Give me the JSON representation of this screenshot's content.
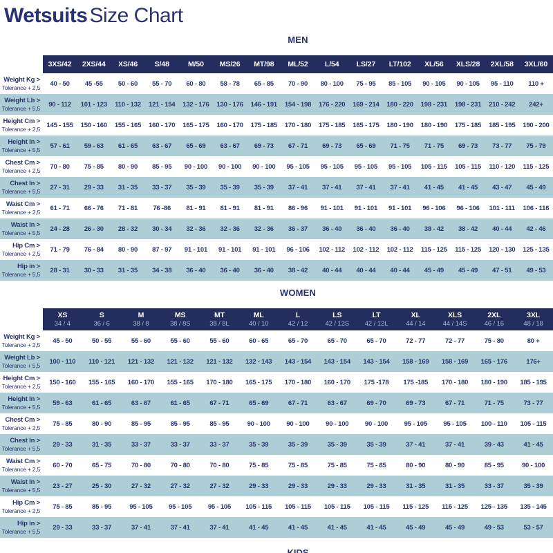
{
  "title": {
    "bold": "Wetsuits",
    "regular": "Size Chart"
  },
  "colors": {
    "navy": "#2b3274",
    "header_bar": "#232e5e",
    "cell_text": "#2a356b",
    "row_alt": "#adced6",
    "women_sub_text": "#a9b8d8"
  },
  "footer_heading": "KIDS",
  "sections": [
    {
      "id": "men",
      "heading": "MEN",
      "columns": [
        {
          "label": "3XS/42"
        },
        {
          "label": "2XS/44"
        },
        {
          "label": "XS/46"
        },
        {
          "label": "S/48"
        },
        {
          "label": "M/50"
        },
        {
          "label": "MS/26"
        },
        {
          "label": "MT/98"
        },
        {
          "label": "ML/52"
        },
        {
          "label": "L/54"
        },
        {
          "label": "LS/27"
        },
        {
          "label": "LT/102"
        },
        {
          "label": "XL/56"
        },
        {
          "label": "XLS/28"
        },
        {
          "label": "2XL/58"
        },
        {
          "label": "3XL/60"
        }
      ],
      "rows": [
        {
          "label": "Weight Kg >",
          "tolerance": "Tolerance + 2,5",
          "values": [
            "40 - 50",
            "45 -55",
            "50 - 60",
            "55 - 70",
            "60 - 80",
            "58 - 78",
            "65 - 85",
            "70 - 90",
            "80 - 100",
            "75 - 95",
            "85 - 105",
            "90 - 105",
            "90 - 105",
            "95 - 110",
            "110 +"
          ]
        },
        {
          "label": "Weight Lb >",
          "tolerance": "Tolerance + 5,5",
          "values": [
            "90 - 112",
            "101 - 123",
            "110 - 132",
            "121 - 154",
            "132 - 176",
            "130 - 176",
            "146 - 191",
            "154 - 198",
            "176 - 220",
            "169 - 214",
            "180 - 220",
            "198 - 231",
            "198 - 231",
            "210 - 242",
            "242+"
          ]
        },
        {
          "label": "Height Cm >",
          "tolerance": "Tolerance + 2,5",
          "values": [
            "145 - 155",
            "150 - 160",
            "155 - 165",
            "160 - 170",
            "165 - 175",
            "160 - 170",
            "175 - 185",
            "170 - 180",
            "175 - 185",
            "165 - 175",
            "180 - 190",
            "180 - 190",
            "175 - 185",
            "185 - 195",
            "190 - 200"
          ]
        },
        {
          "label": "Height In >",
          "tolerance": "Tolerance + 5,5",
          "values": [
            "57 - 61",
            "59 - 63",
            "61 - 65",
            "63 - 67",
            "65 - 69",
            "63 - 67",
            "69 - 73",
            "67 - 71",
            "69 - 73",
            "65 - 69",
            "71 - 75",
            "71 - 75",
            "69 - 73",
            "73 - 77",
            "75 - 79"
          ]
        },
        {
          "label": "Chest Cm >",
          "tolerance": "Tolerance + 2,5",
          "values": [
            "70 - 80",
            "75 - 85",
            "80 - 90",
            "85 - 95",
            "90 - 100",
            "90 - 100",
            "90 - 100",
            "95 - 105",
            "95 - 105",
            "95 - 105",
            "95 - 105",
            "105 - 115",
            "105 - 115",
            "110 - 120",
            "115 - 125"
          ]
        },
        {
          "label": "Chest In >",
          "tolerance": "Tolerance + 5,5",
          "values": [
            "27 - 31",
            "29 - 33",
            "31 - 35",
            "33 - 37",
            "35 - 39",
            "35 - 39",
            "35 - 39",
            "37 - 41",
            "37 - 41",
            "37 - 41",
            "37 - 41",
            "41 - 45",
            "41 - 45",
            "43 - 47",
            "45 - 49"
          ]
        },
        {
          "label": "Waist Cm >",
          "tolerance": "Tolerance + 2,5",
          "values": [
            "61 - 71",
            "66 - 76",
            "71 - 81",
            "76 -86",
            "81 - 91",
            "81 - 91",
            "81 - 91",
            "86 - 96",
            "91 - 101",
            "91 - 101",
            "91 - 101",
            "96 - 106",
            "96 - 106",
            "101 - 111",
            "106 - 116"
          ]
        },
        {
          "label": "Waist In >",
          "tolerance": "Tolerance + 5,5",
          "values": [
            "24 - 28",
            "26 - 30",
            "28 - 32",
            "30 - 34",
            "32 - 36",
            "32 - 36",
            "32 - 36",
            "36 - 37",
            "36 - 40",
            "36 - 40",
            "36 - 40",
            "38 - 42",
            "38 - 42",
            "40 - 44",
            "42 - 46"
          ]
        },
        {
          "label": "Hip Cm >",
          "tolerance": "Tolerance + 2,5",
          "values": [
            "71 - 79",
            "76 - 84",
            "80 - 90",
            "87 - 97",
            "91 - 101",
            "91 - 101",
            "91 - 101",
            "96 - 106",
            "102 - 112",
            "102 - 112",
            "102 - 112",
            "115 - 125",
            "115 - 125",
            "120 - 130",
            "125 - 135"
          ]
        },
        {
          "label": "Hip in >",
          "tolerance": "Tolerance + 5,5",
          "values": [
            "28 - 31",
            "30 - 33",
            "31 - 35",
            "34 - 38",
            "36 - 40",
            "36 - 40",
            "36 - 40",
            "38 - 42",
            "40 - 44",
            "40 - 44",
            "40 - 44",
            "45 - 49",
            "45 - 49",
            "47 - 51",
            "49 - 53"
          ]
        }
      ]
    },
    {
      "id": "women",
      "heading": "WOMEN",
      "columns": [
        {
          "label": "XS",
          "sub": "34 / 4"
        },
        {
          "label": "S",
          "sub": "36 / 6"
        },
        {
          "label": "M",
          "sub": "38 / 8"
        },
        {
          "label": "MS",
          "sub": "38 / 8S"
        },
        {
          "label": "MT",
          "sub": "38 / 8L"
        },
        {
          "label": "ML",
          "sub": "40 / 10"
        },
        {
          "label": "L",
          "sub": "42 / 12"
        },
        {
          "label": "LS",
          "sub": "42 / 12S"
        },
        {
          "label": "LT",
          "sub": "42 / 12L"
        },
        {
          "label": "XL",
          "sub": "44 / 14"
        },
        {
          "label": "XLS",
          "sub": "44 / 14S"
        },
        {
          "label": "2XL",
          "sub": "46 / 16"
        },
        {
          "label": "3XL",
          "sub": "48 / 18"
        }
      ],
      "rows": [
        {
          "label": "Weight Kg >",
          "tolerance": "Tolerance + 2,5",
          "values": [
            "45 - 50",
            "50 - 55",
            "55 - 60",
            "55 - 60",
            "55 - 60",
            "60 - 65",
            "65 - 70",
            "65 - 70",
            "65 - 70",
            "72 - 77",
            "72 - 77",
            "75 - 80",
            "80 +"
          ]
        },
        {
          "label": "Weight Lb >",
          "tolerance": "Tolerance + 5,5",
          "values": [
            "100 - 110",
            "110 - 121",
            "121 - 132",
            "121 - 132",
            "121 - 132",
            "132 - 143",
            "143 - 154",
            "143 - 154",
            "143 - 154",
            "158 - 169",
            "158 - 169",
            "165 - 176",
            "176+"
          ]
        },
        {
          "label": "Height Cm >",
          "tolerance": "Tolerance + 2,5",
          "values": [
            "150 - 160",
            "155 - 165",
            "160 - 170",
            "155 - 165",
            "170 - 180",
            "165 - 175",
            "170 - 180",
            "160 - 170",
            "175 -178",
            "175 -185",
            "170 - 180",
            "180 - 190",
            "185 - 195"
          ]
        },
        {
          "label": "Height In >",
          "tolerance": "Tolerance + 5,5",
          "values": [
            "59 - 63",
            "61 - 65",
            "63 - 67",
            "61 - 65",
            "67 - 71",
            "65 - 69",
            "67 - 71",
            "63 - 67",
            "69 - 70",
            "69 - 73",
            "67 - 71",
            "71 - 75",
            "73 - 77"
          ]
        },
        {
          "label": "Chest Cm >",
          "tolerance": "Tolerance + 2,5",
          "values": [
            "75 - 85",
            "80 - 90",
            "85 - 95",
            "85 - 95",
            "85 - 95",
            "90 - 100",
            "90 - 100",
            "90 - 100",
            "90 - 100",
            "95 - 105",
            "95 - 105",
            "100 - 110",
            "105 - 115"
          ]
        },
        {
          "label": "Chest In >",
          "tolerance": "Tolerance + 5,5",
          "values": [
            "29 - 33",
            "31 - 35",
            "33 - 37",
            "33 - 37",
            "33 - 37",
            "35 - 39",
            "35 - 39",
            "35 - 39",
            "35 - 39",
            "37 - 41",
            "37 - 41",
            "39 - 43",
            "41 - 45"
          ]
        },
        {
          "label": "Waist Cm >",
          "tolerance": "Tolerance + 2,5",
          "values": [
            "60 - 70",
            "65 - 75",
            "70 - 80",
            "70 - 80",
            "70 - 80",
            "75 - 85",
            "75 - 85",
            "75 - 85",
            "75 - 85",
            "80 - 90",
            "80 - 90",
            "85 - 95",
            "90 - 100"
          ]
        },
        {
          "label": "Waist In >",
          "tolerance": "Tolerance + 5,5",
          "values": [
            "23 - 27",
            "25 - 30",
            "27 - 32",
            "27 - 32",
            "27 - 32",
            "29 - 33",
            "29 - 33",
            "29 - 33",
            "29 - 33",
            "31 - 35",
            "31 - 35",
            "33 - 37",
            "35 - 39"
          ]
        },
        {
          "label": "Hip Cm >",
          "tolerance": "Tolerance + 2,5",
          "values": [
            "75 - 85",
            "85 - 95",
            "95 - 105",
            "95 - 105",
            "95 - 105",
            "105 - 115",
            "105 - 115",
            "105 - 115",
            "105 - 115",
            "115 - 125",
            "115 - 125",
            "125 - 135",
            "135 - 145"
          ]
        },
        {
          "label": "Hip in >",
          "tolerance": "Tolerance + 5,5",
          "values": [
            "29 - 33",
            "33 - 37",
            "37 - 41",
            "37 - 41",
            "37 - 41",
            "41 - 45",
            "41 - 45",
            "41 - 45",
            "41 - 45",
            "45 - 49",
            "45 - 49",
            "49 - 53",
            "53 - 57"
          ]
        }
      ]
    }
  ]
}
